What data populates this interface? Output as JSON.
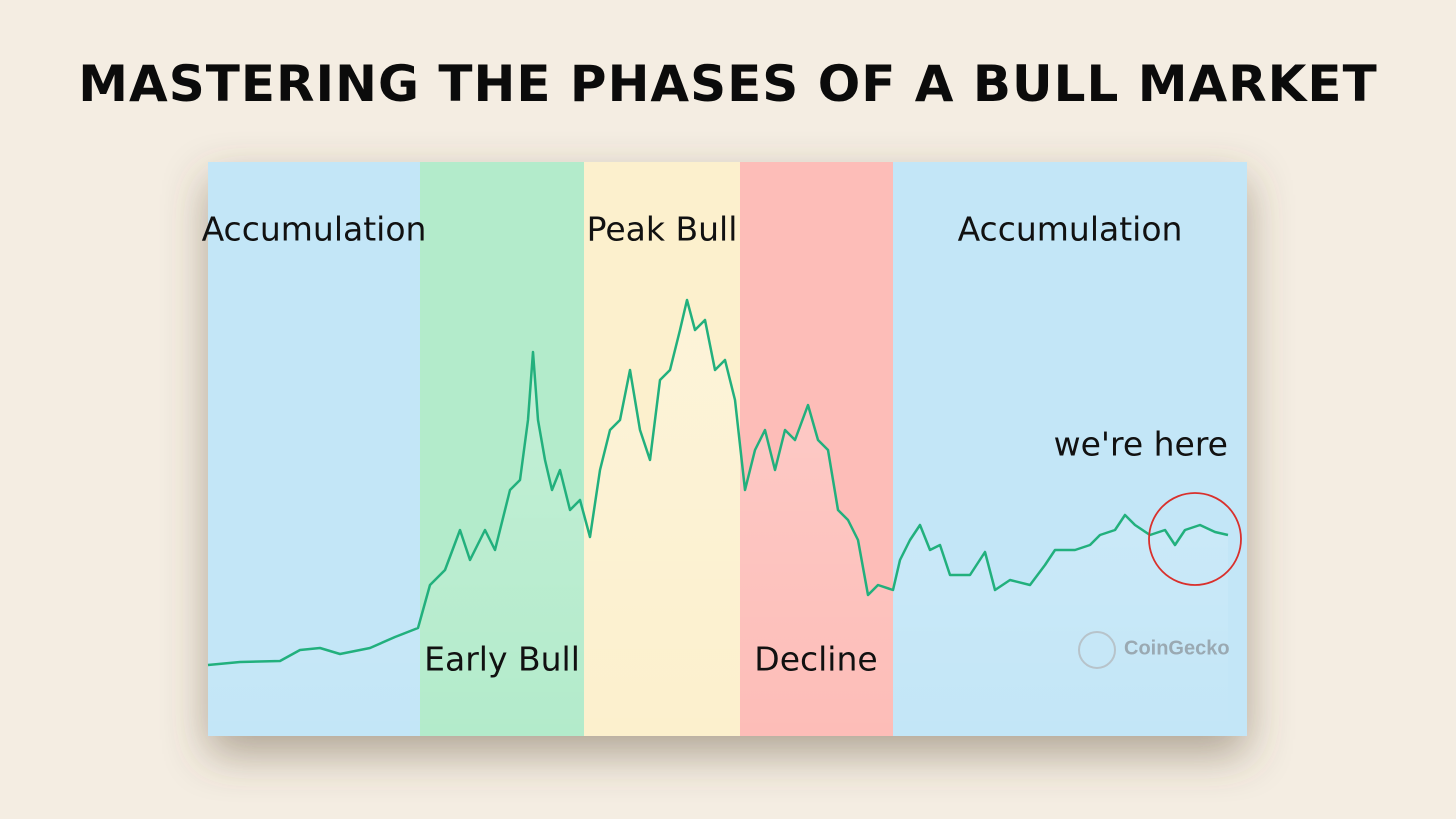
{
  "header": {
    "title": "MASTERING THE PHASES OF A BULL MARKET"
  },
  "phases": [
    {
      "label": "Accumulation"
    },
    {
      "label": "Early Bull"
    },
    {
      "label": "Peak Bull"
    },
    {
      "label": "Decline"
    },
    {
      "label": "Accumulation"
    }
  ],
  "annotation": "we're here",
  "watermark": "CoinGecko"
}
